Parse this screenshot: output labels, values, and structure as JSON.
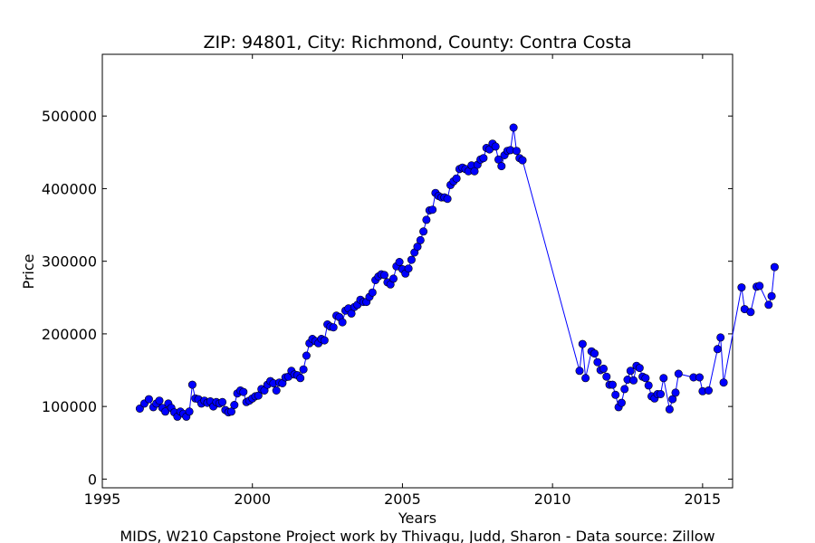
{
  "chart_data": {
    "type": "line",
    "title": "ZIP: 94801, City: Richmond, County: Contra Costa",
    "xlabel": "Years",
    "ylabel": "Price",
    "footer": "MIDS, W210 Capstone Project work by Thivagu, Judd, Sharon  -  Data source: Zillow",
    "xlim": [
      1995,
      2016
    ],
    "ylim": [
      -12000,
      585000
    ],
    "xticks": [
      1995,
      2000,
      2005,
      2010,
      2015
    ],
    "yticks": [
      0,
      100000,
      200000,
      300000,
      400000,
      500000
    ],
    "grid": false,
    "series": [
      {
        "color": "#0000ff",
        "marker": "circle",
        "points": [
          [
            1996.25,
            97000
          ],
          [
            1996.4,
            104000
          ],
          [
            1996.55,
            110000
          ],
          [
            1996.7,
            99000
          ],
          [
            1996.8,
            104000
          ],
          [
            1996.9,
            108000
          ],
          [
            1997.0,
            98000
          ],
          [
            1997.1,
            93000
          ],
          [
            1997.2,
            104000
          ],
          [
            1997.3,
            98000
          ],
          [
            1997.4,
            92000
          ],
          [
            1997.5,
            86000
          ],
          [
            1997.6,
            93000
          ],
          [
            1997.7,
            90000
          ],
          [
            1997.8,
            86000
          ],
          [
            1997.9,
            93000
          ],
          [
            1998.0,
            130000
          ],
          [
            1998.1,
            111000
          ],
          [
            1998.2,
            110000
          ],
          [
            1998.3,
            104000
          ],
          [
            1998.4,
            108000
          ],
          [
            1998.5,
            105000
          ],
          [
            1998.6,
            107000
          ],
          [
            1998.7,
            100000
          ],
          [
            1998.8,
            106000
          ],
          [
            1998.9,
            104000
          ],
          [
            1999.0,
            106000
          ],
          [
            1999.1,
            95000
          ],
          [
            1999.2,
            92000
          ],
          [
            1999.3,
            93000
          ],
          [
            1999.4,
            102000
          ],
          [
            1999.5,
            118000
          ],
          [
            1999.6,
            122000
          ],
          [
            1999.7,
            120000
          ],
          [
            1999.8,
            106000
          ],
          [
            1999.9,
            108000
          ],
          [
            2000.0,
            111000
          ],
          [
            2000.1,
            114000
          ],
          [
            2000.2,
            115000
          ],
          [
            2000.3,
            124000
          ],
          [
            2000.4,
            122000
          ],
          [
            2000.5,
            130000
          ],
          [
            2000.6,
            135000
          ],
          [
            2000.7,
            132000
          ],
          [
            2000.8,
            122000
          ],
          [
            2000.9,
            133000
          ],
          [
            2001.0,
            132000
          ],
          [
            2001.1,
            140000
          ],
          [
            2001.2,
            141000
          ],
          [
            2001.3,
            149000
          ],
          [
            2001.4,
            144000
          ],
          [
            2001.5,
            143000
          ],
          [
            2001.6,
            139000
          ],
          [
            2001.7,
            151000
          ],
          [
            2001.8,
            170000
          ],
          [
            2001.9,
            187000
          ],
          [
            2002.0,
            193000
          ],
          [
            2002.1,
            190000
          ],
          [
            2002.2,
            187000
          ],
          [
            2002.3,
            193000
          ],
          [
            2002.4,
            191000
          ],
          [
            2002.5,
            213000
          ],
          [
            2002.6,
            210000
          ],
          [
            2002.7,
            209000
          ],
          [
            2002.8,
            225000
          ],
          [
            2002.9,
            223000
          ],
          [
            2003.0,
            216000
          ],
          [
            2003.1,
            232000
          ],
          [
            2003.2,
            235000
          ],
          [
            2003.3,
            228000
          ],
          [
            2003.4,
            237000
          ],
          [
            2003.5,
            240000
          ],
          [
            2003.6,
            247000
          ],
          [
            2003.7,
            244000
          ],
          [
            2003.8,
            244000
          ],
          [
            2003.9,
            251000
          ],
          [
            2004.0,
            257000
          ],
          [
            2004.1,
            274000
          ],
          [
            2004.2,
            279000
          ],
          [
            2004.3,
            282000
          ],
          [
            2004.4,
            281000
          ],
          [
            2004.5,
            271000
          ],
          [
            2004.6,
            268000
          ],
          [
            2004.7,
            276000
          ],
          [
            2004.8,
            293000
          ],
          [
            2004.9,
            299000
          ],
          [
            2005.0,
            289000
          ],
          [
            2005.1,
            283000
          ],
          [
            2005.2,
            290000
          ],
          [
            2005.3,
            302000
          ],
          [
            2005.4,
            312000
          ],
          [
            2005.5,
            320000
          ],
          [
            2005.6,
            329000
          ],
          [
            2005.7,
            341000
          ],
          [
            2005.8,
            357000
          ],
          [
            2005.9,
            370000
          ],
          [
            2006.0,
            371000
          ],
          [
            2006.1,
            394000
          ],
          [
            2006.2,
            390000
          ],
          [
            2006.3,
            388000
          ],
          [
            2006.4,
            388000
          ],
          [
            2006.5,
            386000
          ],
          [
            2006.6,
            405000
          ],
          [
            2006.7,
            410000
          ],
          [
            2006.8,
            414000
          ],
          [
            2006.9,
            427000
          ],
          [
            2007.0,
            429000
          ],
          [
            2007.1,
            427000
          ],
          [
            2007.2,
            424000
          ],
          [
            2007.3,
            432000
          ],
          [
            2007.4,
            424000
          ],
          [
            2007.5,
            433000
          ],
          [
            2007.6,
            440000
          ],
          [
            2007.7,
            442000
          ],
          [
            2007.8,
            456000
          ],
          [
            2007.9,
            454000
          ],
          [
            2008.0,
            462000
          ],
          [
            2008.1,
            458000
          ],
          [
            2008.2,
            440000
          ],
          [
            2008.3,
            431000
          ],
          [
            2008.4,
            446000
          ],
          [
            2008.5,
            452000
          ],
          [
            2008.6,
            453000
          ],
          [
            2008.7,
            484000
          ],
          [
            2008.8,
            452000
          ],
          [
            2008.9,
            442000
          ],
          [
            2009.0,
            439000
          ],
          [
            2010.9,
            149000
          ],
          [
            2011.0,
            186000
          ],
          [
            2011.1,
            139000
          ],
          [
            2011.3,
            176000
          ],
          [
            2011.4,
            173000
          ],
          [
            2011.5,
            161000
          ],
          [
            2011.6,
            150000
          ],
          [
            2011.7,
            152000
          ],
          [
            2011.8,
            141000
          ],
          [
            2011.9,
            130000
          ],
          [
            2012.0,
            130000
          ],
          [
            2012.1,
            116000
          ],
          [
            2012.2,
            99000
          ],
          [
            2012.3,
            105000
          ],
          [
            2012.4,
            124000
          ],
          [
            2012.5,
            137000
          ],
          [
            2012.6,
            149000
          ],
          [
            2012.7,
            136000
          ],
          [
            2012.8,
            156000
          ],
          [
            2012.9,
            153000
          ],
          [
            2013.0,
            141000
          ],
          [
            2013.1,
            139000
          ],
          [
            2013.2,
            129000
          ],
          [
            2013.3,
            114000
          ],
          [
            2013.4,
            111000
          ],
          [
            2013.5,
            117000
          ],
          [
            2013.6,
            117000
          ],
          [
            2013.7,
            139000
          ],
          [
            2013.9,
            96000
          ],
          [
            2014.0,
            110000
          ],
          [
            2014.1,
            119000
          ],
          [
            2014.2,
            145000
          ],
          [
            2014.7,
            140000
          ],
          [
            2014.9,
            140000
          ],
          [
            2015.0,
            121000
          ],
          [
            2015.2,
            122000
          ],
          [
            2015.5,
            179000
          ],
          [
            2015.6,
            195000
          ],
          [
            2015.7,
            133000
          ],
          [
            2016.3,
            264000
          ],
          [
            2016.4,
            234000
          ],
          [
            2016.6,
            230000
          ],
          [
            2016.8,
            265000
          ],
          [
            2016.9,
            266000
          ],
          [
            2017.2,
            240000
          ],
          [
            2017.3,
            252000
          ],
          [
            2017.4,
            292000
          ]
        ]
      }
    ]
  }
}
